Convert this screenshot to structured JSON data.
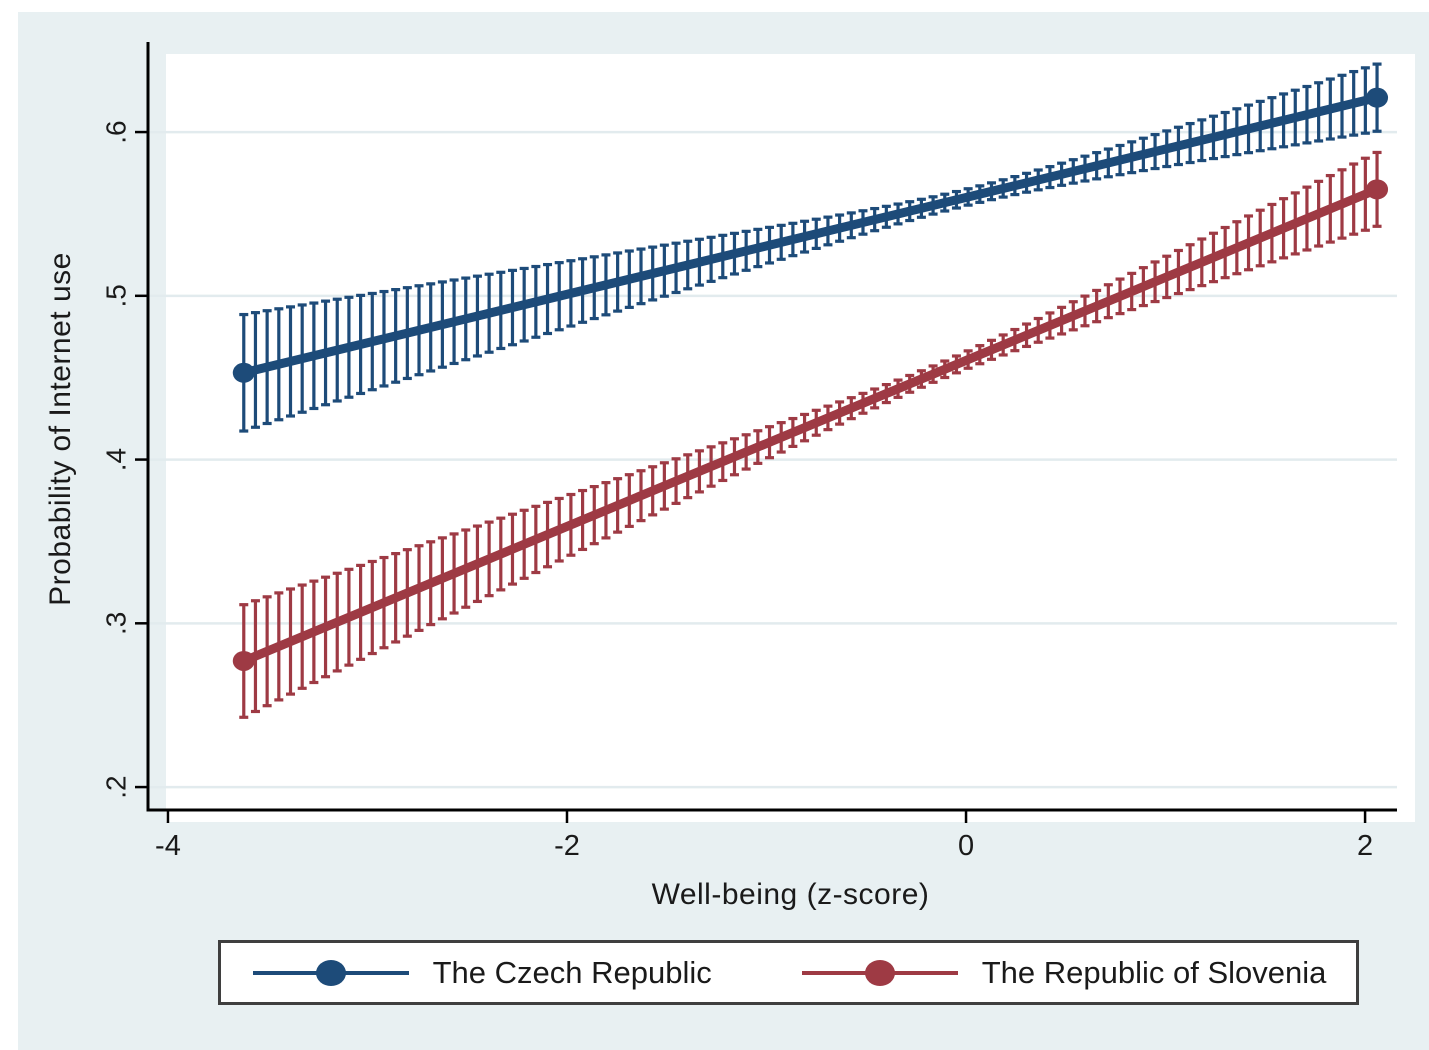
{
  "figure": {
    "background_color": "#e8f0f2",
    "plot_background_color": "#ffffff",
    "axis_color": "#000000",
    "grid_color": "#e2ebee",
    "text_color": "#1a1a1a",
    "legend_border_color": "#3f3f3f"
  },
  "chart_data": {
    "type": "line",
    "title": "",
    "xlabel": "Well-being (z-score)",
    "ylabel": "Probability of Internet use",
    "x_ticks": [
      -4,
      -2,
      0,
      2
    ],
    "x_tick_labels": [
      "-4",
      "-2",
      "0",
      "2"
    ],
    "y_ticks": [
      0.2,
      0.3,
      0.4,
      0.5,
      0.6
    ],
    "y_tick_labels": [
      ".2",
      ".3",
      ".4",
      ".5",
      ".6"
    ],
    "xlim": [
      -4.1,
      2.16
    ],
    "ylim": [
      0.186,
      0.655
    ],
    "grid": "horizontal gridlines at y ticks",
    "legend_position": "bottom",
    "error_bars": "vertical capped confidence intervals at each of 98 evenly spaced points per series",
    "n_points_per_series": 98,
    "series": [
      {
        "name": "The Czech Republic",
        "color": "#1d4b79",
        "x_start": -3.62,
        "x_end": 2.06,
        "y_start": 0.453,
        "y_end": 0.621,
        "ci_model": {
          "half_width_min": 0.005,
          "center_x": 0.01,
          "growth_per_unit_x": 0.0097
        },
        "sample_points": {
          "x": [
            -3.6,
            -3,
            -2,
            -1,
            0,
            1,
            2
          ],
          "y": [
            0.454,
            0.471,
            0.501,
            0.53,
            0.56,
            0.59,
            0.619
          ],
          "ci_low": [
            0.419,
            0.441,
            0.481,
            0.519,
            0.555,
            0.579,
            0.599
          ],
          "ci_high": [
            0.489,
            0.501,
            0.521,
            0.541,
            0.565,
            0.601,
            0.639
          ]
        }
      },
      {
        "name": "The Republic of Slovenia",
        "color": "#9e3a44",
        "x_start": -3.62,
        "x_end": 2.06,
        "y_start": 0.277,
        "y_end": 0.565,
        "ci_model": {
          "half_width_min": 0.005,
          "center_x": -0.17,
          "growth_per_unit_x": 0.00986
        },
        "sample_points": {
          "x": [
            -3.6,
            -3,
            -2,
            -1,
            0,
            1,
            2
          ],
          "y": [
            0.278,
            0.308,
            0.359,
            0.41,
            0.461,
            0.511,
            0.562
          ],
          "ci_low": [
            0.244,
            0.28,
            0.34,
            0.4,
            0.456,
            0.498,
            0.54
          ],
          "ci_high": [
            0.312,
            0.336,
            0.378,
            0.42,
            0.466,
            0.524,
            0.584
          ]
        }
      }
    ]
  },
  "legend": {
    "items": [
      {
        "label": "The Czech Republic"
      },
      {
        "label": "The Republic of Slovenia"
      }
    ]
  }
}
